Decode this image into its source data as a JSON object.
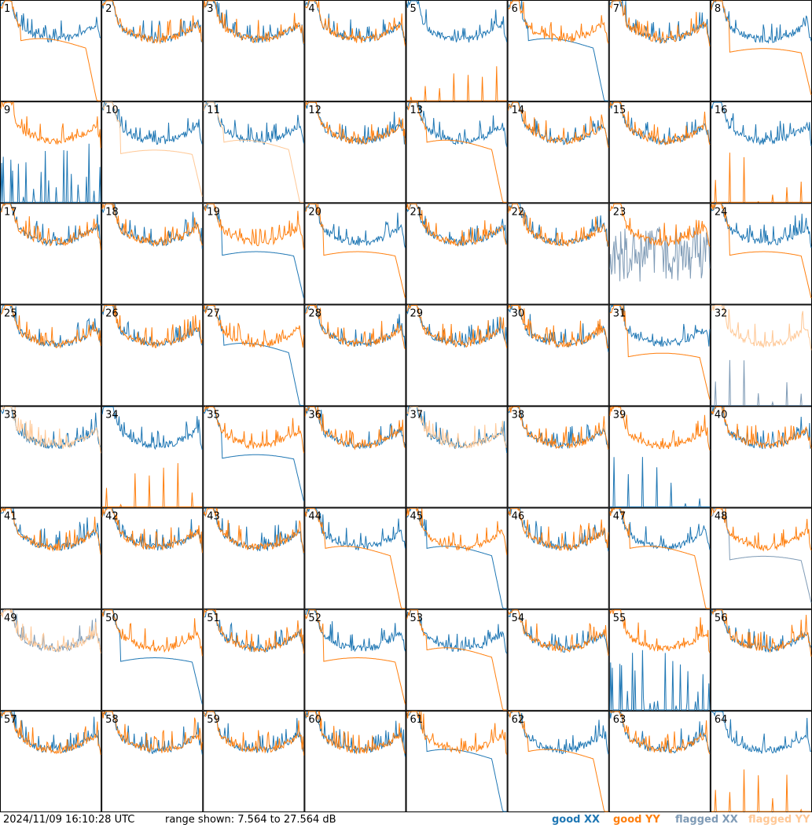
{
  "footer": {
    "timestamp": "2024/11/09 16:10:28 UTC",
    "range_text": "range shown: 7.564 to 27.564 dB"
  },
  "legend": [
    {
      "label": "good XX",
      "color": "#1f77b4"
    },
    {
      "label": "good YY",
      "color": "#ff7f0e"
    },
    {
      "label": "flagged XX",
      "color": "#7f9bb6"
    },
    {
      "label": "flagged YY",
      "color": "#ffc896"
    }
  ],
  "chart_data": {
    "type": "line",
    "ylim": [
      7.564,
      27.564
    ],
    "panels": [
      {
        "label": "1",
        "xx": "good",
        "yy": "good",
        "shape": "drop"
      },
      {
        "label": "2",
        "xx": "good",
        "yy": "good",
        "shape": "normal"
      },
      {
        "label": "3",
        "xx": "good",
        "yy": "good",
        "shape": "normal"
      },
      {
        "label": "4",
        "xx": "good",
        "yy": "good",
        "shape": "normal"
      },
      {
        "label": "5",
        "xx": "good",
        "yy": "good",
        "shape": "yy_flat"
      },
      {
        "label": "6",
        "xx": "good",
        "yy": "good",
        "shape": "xx_drop"
      },
      {
        "label": "7",
        "xx": "good",
        "yy": "good",
        "shape": "normal"
      },
      {
        "label": "8",
        "xx": "good",
        "yy": "good",
        "shape": "yy_low"
      },
      {
        "label": "9",
        "xx": "good",
        "yy": "good",
        "shape": "xx_spikes"
      },
      {
        "label": "10",
        "xx": "good",
        "yy": "flagged",
        "shape": "yy_low"
      },
      {
        "label": "11",
        "xx": "good",
        "yy": "flagged",
        "shape": "yy_drop"
      },
      {
        "label": "12",
        "xx": "good",
        "yy": "good",
        "shape": "normal"
      },
      {
        "label": "13",
        "xx": "good",
        "yy": "good",
        "shape": "yy_drop"
      },
      {
        "label": "14",
        "xx": "good",
        "yy": "good",
        "shape": "normal"
      },
      {
        "label": "15",
        "xx": "good",
        "yy": "good",
        "shape": "normal"
      },
      {
        "label": "16",
        "xx": "good",
        "yy": "good",
        "shape": "yy_flat"
      },
      {
        "label": "17",
        "xx": "good",
        "yy": "good",
        "shape": "normal"
      },
      {
        "label": "18",
        "xx": "good",
        "yy": "good",
        "shape": "normal"
      },
      {
        "label": "19",
        "xx": "good",
        "yy": "good",
        "shape": "xx_low"
      },
      {
        "label": "20",
        "xx": "good",
        "yy": "good",
        "shape": "yy_low"
      },
      {
        "label": "21",
        "xx": "good",
        "yy": "good",
        "shape": "normal"
      },
      {
        "label": "22",
        "xx": "good",
        "yy": "good",
        "shape": "normal"
      },
      {
        "label": "23",
        "xx": "flagged",
        "yy": "good",
        "shape": "xx_noise"
      },
      {
        "label": "24",
        "xx": "good",
        "yy": "good",
        "shape": "yy_low"
      },
      {
        "label": "25",
        "xx": "good",
        "yy": "good",
        "shape": "normal"
      },
      {
        "label": "26",
        "xx": "good",
        "yy": "good",
        "shape": "normal"
      },
      {
        "label": "27",
        "xx": "good",
        "yy": "good",
        "shape": "xx_drop"
      },
      {
        "label": "28",
        "xx": "good",
        "yy": "good",
        "shape": "normal"
      },
      {
        "label": "29",
        "xx": "good",
        "yy": "good",
        "shape": "normal"
      },
      {
        "label": "30",
        "xx": "good",
        "yy": "good",
        "shape": "normal"
      },
      {
        "label": "31",
        "xx": "good",
        "yy": "good",
        "shape": "yy_low"
      },
      {
        "label": "32",
        "xx": "flagged",
        "yy": "flagged",
        "shape": "xx_flat"
      },
      {
        "label": "33",
        "xx": "good",
        "yy": "flagged",
        "shape": "normal"
      },
      {
        "label": "34",
        "xx": "good",
        "yy": "good",
        "shape": "yy_flat"
      },
      {
        "label": "35",
        "xx": "good",
        "yy": "good",
        "shape": "xx_low"
      },
      {
        "label": "36",
        "xx": "good",
        "yy": "good",
        "shape": "normal"
      },
      {
        "label": "37",
        "xx": "good",
        "yy": "flagged",
        "shape": "normal"
      },
      {
        "label": "38",
        "xx": "good",
        "yy": "good",
        "shape": "normal"
      },
      {
        "label": "39",
        "xx": "good",
        "yy": "good",
        "shape": "xx_flat"
      },
      {
        "label": "40",
        "xx": "good",
        "yy": "good",
        "shape": "normal"
      },
      {
        "label": "41",
        "xx": "good",
        "yy": "good",
        "shape": "normal"
      },
      {
        "label": "42",
        "xx": "good",
        "yy": "good",
        "shape": "normal"
      },
      {
        "label": "43",
        "xx": "good",
        "yy": "good",
        "shape": "normal"
      },
      {
        "label": "44",
        "xx": "good",
        "yy": "good",
        "shape": "yy_drop"
      },
      {
        "label": "45",
        "xx": "good",
        "yy": "good",
        "shape": "xx_drop"
      },
      {
        "label": "46",
        "xx": "good",
        "yy": "good",
        "shape": "normal"
      },
      {
        "label": "47",
        "xx": "good",
        "yy": "good",
        "shape": "yy_drop"
      },
      {
        "label": "48",
        "xx": "flagged",
        "yy": "good",
        "shape": "xx_low"
      },
      {
        "label": "49",
        "xx": "flagged",
        "yy": "flagged",
        "shape": "normal"
      },
      {
        "label": "50",
        "xx": "good",
        "yy": "good",
        "shape": "xx_low"
      },
      {
        "label": "51",
        "xx": "good",
        "yy": "good",
        "shape": "normal"
      },
      {
        "label": "52",
        "xx": "good",
        "yy": "good",
        "shape": "yy_low"
      },
      {
        "label": "53",
        "xx": "good",
        "yy": "good",
        "shape": "yy_drop"
      },
      {
        "label": "54",
        "xx": "good",
        "yy": "good",
        "shape": "normal"
      },
      {
        "label": "55",
        "xx": "good",
        "yy": "good",
        "shape": "xx_spikes"
      },
      {
        "label": "56",
        "xx": "good",
        "yy": "good",
        "shape": "normal"
      },
      {
        "label": "57",
        "xx": "good",
        "yy": "good",
        "shape": "normal"
      },
      {
        "label": "58",
        "xx": "good",
        "yy": "good",
        "shape": "normal"
      },
      {
        "label": "59",
        "xx": "good",
        "yy": "good",
        "shape": "normal"
      },
      {
        "label": "60",
        "xx": "good",
        "yy": "good",
        "shape": "normal"
      },
      {
        "label": "61",
        "xx": "good",
        "yy": "good",
        "shape": "xx_drop"
      },
      {
        "label": "62",
        "xx": "good",
        "yy": "good",
        "shape": "yy_drop"
      },
      {
        "label": "63",
        "xx": "good",
        "yy": "good",
        "shape": "normal"
      },
      {
        "label": "64",
        "xx": "good",
        "yy": "good",
        "shape": "yy_flat"
      }
    ]
  }
}
